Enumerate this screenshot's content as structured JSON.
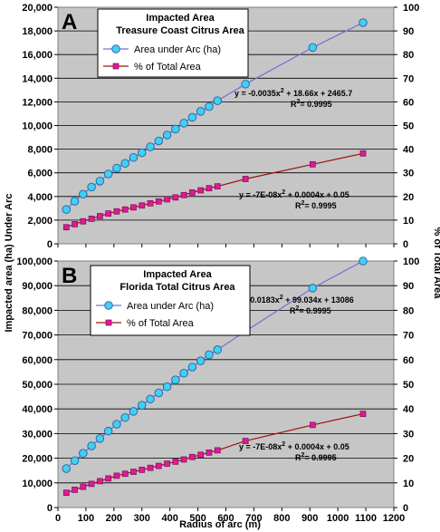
{
  "figure": {
    "xlabel": "Radius of arc (m)",
    "ylabel_left": "Impacted area (ha) Under Arc",
    "ylabel_right": "% of Total Area"
  },
  "chart_data": [
    {
      "type": "line",
      "panel": "A",
      "title": "Impacted Area",
      "subtitle": "Treasure Coast Citrus Area",
      "xlabel": "Radius of arc (m)",
      "ylabel": "Impacted area (ha) Under Arc",
      "y2label": "% of Total Area",
      "xlim": [
        0,
        1200
      ],
      "ylim": [
        0,
        20000
      ],
      "y2lim": [
        0,
        100
      ],
      "x_ticks": [
        0,
        100,
        200,
        300,
        400,
        500,
        600,
        700,
        800,
        900,
        1000,
        1100,
        1200
      ],
      "y_ticks": [
        "0",
        "2,000",
        "4,000",
        "6,000",
        "8,000",
        "10,000",
        "12,000",
        "14,000",
        "16,000",
        "18,000",
        "20,000"
      ],
      "y2_ticks": [
        "0",
        "10",
        "20",
        "30",
        "40",
        "50",
        "60",
        "70",
        "80",
        "90",
        "100"
      ],
      "grid": true,
      "legend_position": "top-center",
      "series": [
        {
          "name": "Area under Arc (ha)",
          "axis": "left",
          "marker": "circle",
          "line_color": "#7070d8",
          "marker_color": "#40d0f0",
          "x": [
            30,
            60,
            90,
            120,
            150,
            180,
            210,
            240,
            270,
            300,
            330,
            360,
            390,
            420,
            450,
            480,
            510,
            540,
            570,
            670,
            910,
            1090
          ],
          "y": [
            2900,
            3600,
            4200,
            4800,
            5300,
            5900,
            6400,
            6800,
            7300,
            7700,
            8200,
            8700,
            9200,
            9700,
            10200,
            10700,
            11200,
            11600,
            12100,
            13500,
            16600,
            18700
          ]
        },
        {
          "name": "% of Total Area",
          "axis": "right",
          "marker": "square",
          "line_color": "#a01010",
          "marker_color": "#e0189a",
          "x": [
            30,
            60,
            90,
            120,
            150,
            180,
            210,
            240,
            270,
            300,
            330,
            360,
            390,
            420,
            450,
            480,
            510,
            540,
            570,
            670,
            910,
            1090
          ],
          "y": [
            7,
            8.3,
            9.5,
            10.6,
            11.7,
            12.8,
            13.7,
            14.5,
            15.4,
            16.2,
            17.1,
            17.9,
            18.8,
            19.6,
            20.6,
            21.7,
            22.6,
            23.5,
            24.3,
            27.4,
            33.6,
            38.2
          ]
        }
      ],
      "equations": [
        {
          "text": "y = -0.0035x",
          "sup": "2",
          "rest": " + 18.66x + 2465.7",
          "r2_label": "R",
          "r2_sup": "2",
          "r2_value": "= 0.9995"
        },
        {
          "text": "y = -7E-08x",
          "sup": "2",
          "rest": " + 0.0004x + 0.05",
          "r2_label": "R",
          "r2_sup": "2",
          "r2_value": "= 0.9995"
        }
      ]
    },
    {
      "type": "line",
      "panel": "B",
      "title": "Impacted Area",
      "subtitle": "Florida Total Citrus Area",
      "xlabel": "Radius of arc (m)",
      "ylabel": "Impacted area (ha) Under Arc",
      "y2label": "% of Total Area",
      "xlim": [
        0,
        1200
      ],
      "ylim": [
        0,
        100000
      ],
      "y2lim": [
        0,
        100
      ],
      "x_ticks": [
        0,
        100,
        200,
        300,
        400,
        500,
        600,
        700,
        800,
        900,
        1000,
        1100,
        1200
      ],
      "y_ticks": [
        "0",
        "10,000",
        "20,000",
        "30,000",
        "40,000",
        "50,000",
        "60,000",
        "70,000",
        "80,000",
        "90,000",
        "100,000"
      ],
      "y2_ticks": [
        "0",
        "10",
        "20",
        "30",
        "40",
        "50",
        "60",
        "70",
        "80",
        "90",
        "100"
      ],
      "grid": true,
      "legend_position": "top-center",
      "series": [
        {
          "name": "Area under Arc (ha)",
          "axis": "left",
          "marker": "circle",
          "line_color": "#7070d8",
          "marker_color": "#40d0f0",
          "x": [
            30,
            60,
            90,
            120,
            150,
            180,
            210,
            240,
            270,
            300,
            330,
            360,
            390,
            420,
            450,
            480,
            510,
            540,
            570,
            670,
            910,
            1090
          ],
          "y": [
            15800,
            19000,
            22000,
            25000,
            28000,
            31000,
            33800,
            36500,
            39000,
            41500,
            44000,
            46500,
            49000,
            51800,
            54500,
            57000,
            59500,
            62000,
            64000,
            71500,
            89000,
            100000
          ]
        },
        {
          "name": "% of Total Area",
          "axis": "right",
          "marker": "square",
          "line_color": "#a01010",
          "marker_color": "#e0189a",
          "x": [
            30,
            60,
            90,
            120,
            150,
            180,
            210,
            240,
            270,
            300,
            330,
            360,
            390,
            420,
            450,
            480,
            510,
            540,
            570,
            670,
            910,
            1090
          ],
          "y": [
            6,
            7.2,
            8.4,
            9.6,
            10.7,
            11.8,
            12.9,
            13.7,
            14.5,
            15.3,
            16.1,
            16.9,
            17.8,
            18.6,
            19.5,
            20.5,
            21.4,
            22.3,
            23.2,
            27,
            33.5,
            38
          ]
        }
      ],
      "equations": [
        {
          "text": "y = -0.0183x",
          "sup": "2",
          "rest": " + 99.034x + 13086",
          "r2_label": "R",
          "r2_sup": "2",
          "r2_value": "= 0.9995"
        },
        {
          "text": "y = -7E-08x",
          "sup": "2",
          "rest": " + 0.0004x + 0.05",
          "r2_label": "R",
          "r2_sup": "2",
          "r2_value": "= 0.9995"
        }
      ]
    }
  ]
}
